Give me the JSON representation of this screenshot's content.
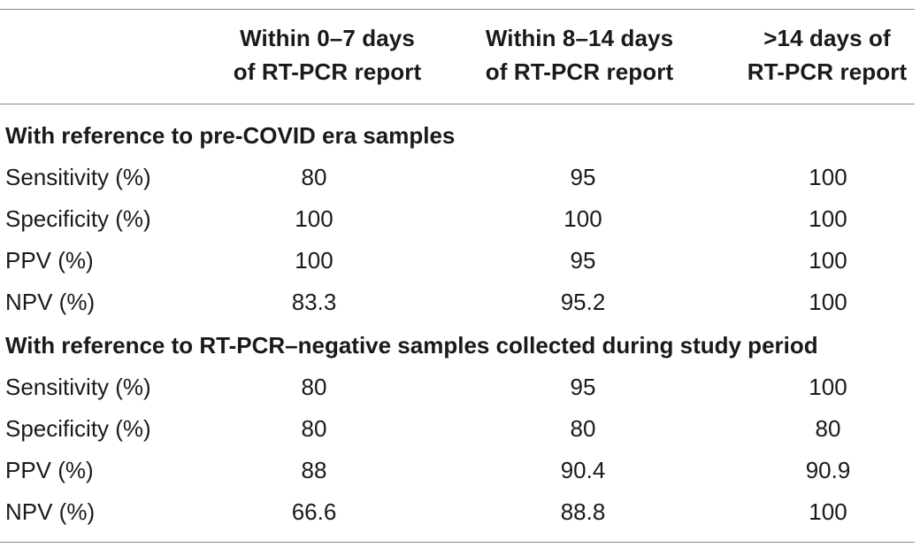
{
  "columns": [
    {
      "line1": "Within 0–7 days",
      "line2": "of RT-PCR report"
    },
    {
      "line1": "Within 8–14 days",
      "line2": "of RT-PCR report"
    },
    {
      "line1": ">14 days of",
      "line2": "RT-PCR report"
    }
  ],
  "sections": [
    {
      "title": "With reference to pre-COVID era samples",
      "rows": [
        {
          "label": "Sensitivity (%)",
          "values": [
            "80",
            "95",
            "100"
          ]
        },
        {
          "label": "Specificity (%)",
          "values": [
            "100",
            "100",
            "100"
          ]
        },
        {
          "label": "PPV (%)",
          "values": [
            "100",
            "95",
            "100"
          ]
        },
        {
          "label": "NPV (%)",
          "values": [
            "83.3",
            "95.2",
            "100"
          ]
        }
      ]
    },
    {
      "title": "With reference to RT-PCR–negative samples collected during study period",
      "rows": [
        {
          "label": "Sensitivity (%)",
          "values": [
            "80",
            "95",
            "100"
          ]
        },
        {
          "label": "Specificity (%)",
          "values": [
            "80",
            "80",
            "80"
          ]
        },
        {
          "label": "PPV (%)",
          "values": [
            "88",
            "90.4",
            "90.9"
          ]
        },
        {
          "label": "NPV (%)",
          "values": [
            "66.6",
            "88.8",
            "100"
          ]
        }
      ]
    }
  ]
}
